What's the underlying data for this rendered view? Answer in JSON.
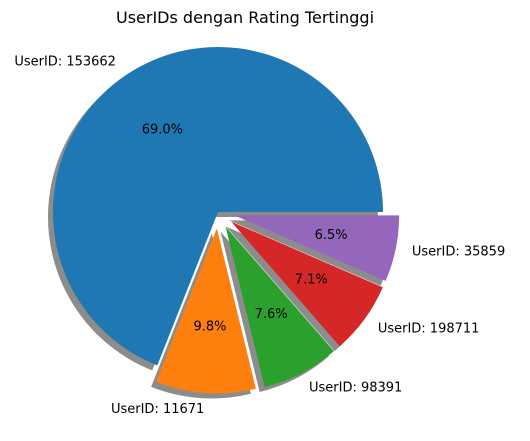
{
  "chart_data": {
    "type": "pie",
    "title": "UserIDs dengan Rating Tertinggi",
    "categories": [
      "UserID: 153662",
      "UserID: 11671",
      "UserID: 98391",
      "UserID: 198711",
      "UserID: 35859"
    ],
    "values": [
      69.0,
      9.8,
      7.6,
      7.1,
      6.5
    ],
    "percent_labels": [
      "69.0%",
      "9.8%",
      "7.6%",
      "7.1%",
      "6.5%"
    ],
    "colors": [
      "#1f77b4",
      "#ff7f0e",
      "#2ca02c",
      "#d62728",
      "#9467bd"
    ],
    "exploded": [
      false,
      true,
      true,
      true,
      true
    ],
    "shadow": true,
    "start_angle_deg": 0,
    "direction": "counterclockwise"
  }
}
